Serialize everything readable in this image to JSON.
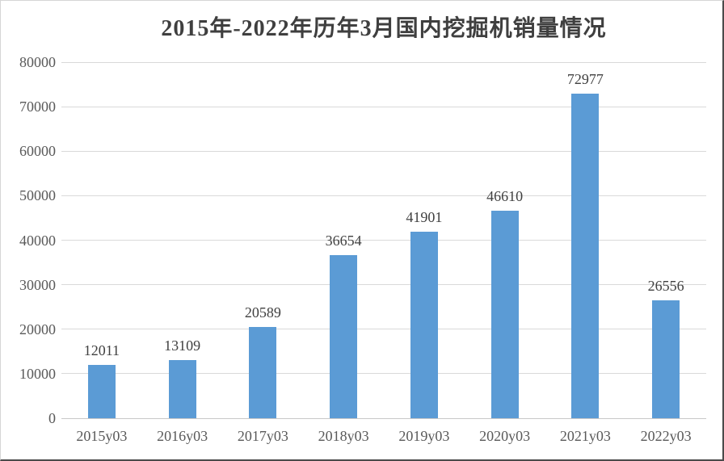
{
  "chart_data": {
    "type": "bar",
    "title": "2015年-2022年历年3月国内挖掘机销量情况",
    "categories": [
      "2015y03",
      "2016y03",
      "2017y03",
      "2018y03",
      "2019y03",
      "2020y03",
      "2021y03",
      "2022y03"
    ],
    "values": [
      12011,
      13109,
      20589,
      36654,
      41901,
      46610,
      72977,
      26556
    ],
    "xlabel": "",
    "ylabel": "",
    "ylim": [
      0,
      80000
    ],
    "yticks": [
      0,
      10000,
      20000,
      30000,
      40000,
      50000,
      60000,
      70000,
      80000
    ],
    "grid": "horizontal",
    "legend_position": "none",
    "data_labels": "above-bars",
    "colors": {
      "bar": "#5B9BD5",
      "gridline": "#D9D9D9",
      "axis_line": "#C8C8C8",
      "tick_label": "#595959",
      "value_label": "#404040",
      "title": "#3F3F3F"
    }
  }
}
